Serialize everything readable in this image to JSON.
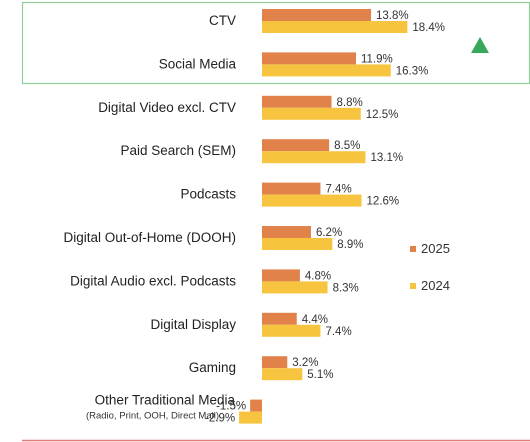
{
  "chart_data": {
    "type": "bar",
    "orientation": "horizontal",
    "categories": [
      "CTV",
      "Social Media",
      "Digital Video excl. CTV",
      "Paid Search (SEM)",
      "Podcasts",
      "Digital Out-of-Home (DOOH)",
      "Digital Audio excl. Podcasts",
      "Digital Display",
      "Gaming",
      "Other Traditional Media"
    ],
    "category_sublabels": [
      "",
      "",
      "",
      "",
      "",
      "",
      "",
      "",
      "",
      "(Radio, Print, OOH, Direct Mail)"
    ],
    "series": [
      {
        "name": "2025",
        "color": "#e0824a",
        "values": [
          13.8,
          11.9,
          8.8,
          8.5,
          7.4,
          6.2,
          4.8,
          4.4,
          3.2,
          -1.5
        ],
        "labels": [
          "13.8%",
          "11.9%",
          "8.8%",
          "8.5%",
          "7.4%",
          "6.2%",
          "4.8%",
          "4.4%",
          "3.2%",
          "-1.5%"
        ]
      },
      {
        "name": "2024",
        "color": "#f7c43f",
        "values": [
          18.4,
          16.3,
          12.5,
          13.1,
          12.6,
          8.9,
          8.3,
          7.4,
          5.1,
          -2.9
        ],
        "labels": [
          "18.4%",
          "16.3%",
          "12.5%",
          "13.1%",
          "12.6%",
          "8.9%",
          "8.3%",
          "7.4%",
          "5.1%",
          "-2.9%"
        ]
      }
    ],
    "legend": {
      "position": "right",
      "items": [
        {
          "label": "2025",
          "color": "#e0824a"
        },
        {
          "label": "2024",
          "color": "#f7c43f"
        }
      ]
    },
    "highlight": {
      "categories": [
        "CTV",
        "Social Media"
      ],
      "border_color": "#8fcf9a",
      "marker": "up-triangle",
      "marker_color": "#3aa85a"
    },
    "bottom_box_color": "#e07a7a",
    "grid": false
  }
}
